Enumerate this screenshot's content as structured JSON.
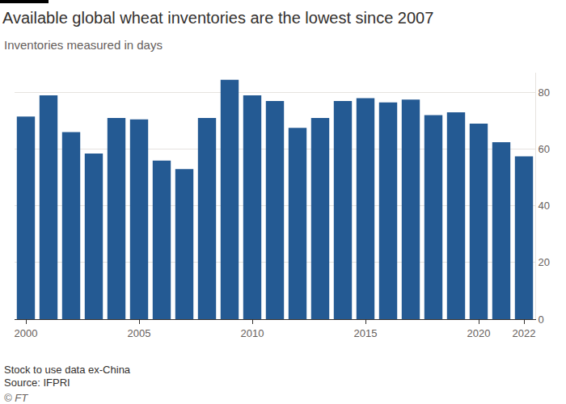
{
  "chart_data": {
    "type": "bar",
    "title": "Available global wheat inventories are the lowest since 2007",
    "subtitle": "Inventories measured in days",
    "notes": [
      "Stock to use data ex-China",
      "Source: IFPRI",
      "© FT"
    ],
    "x": [
      2000,
      2001,
      2002,
      2003,
      2004,
      2005,
      2006,
      2007,
      2008,
      2009,
      2010,
      2011,
      2012,
      2013,
      2014,
      2015,
      2016,
      2017,
      2018,
      2019,
      2020,
      2021,
      2022
    ],
    "values": [
      71.5,
      79,
      66,
      58.5,
      71,
      70.5,
      56,
      53,
      71,
      84.5,
      79,
      77,
      67.5,
      71,
      77,
      78,
      76.5,
      77.5,
      72,
      73,
      69,
      62.5,
      57.5
    ],
    "color": "#245a93",
    "xlim": [
      1999.5,
      2022.5
    ],
    "xticks": [
      2000,
      2005,
      2010,
      2015,
      2020,
      2022
    ],
    "ylim": [
      0,
      87
    ],
    "yticks": [
      0,
      20,
      40,
      60,
      80
    ],
    "grid": true
  }
}
